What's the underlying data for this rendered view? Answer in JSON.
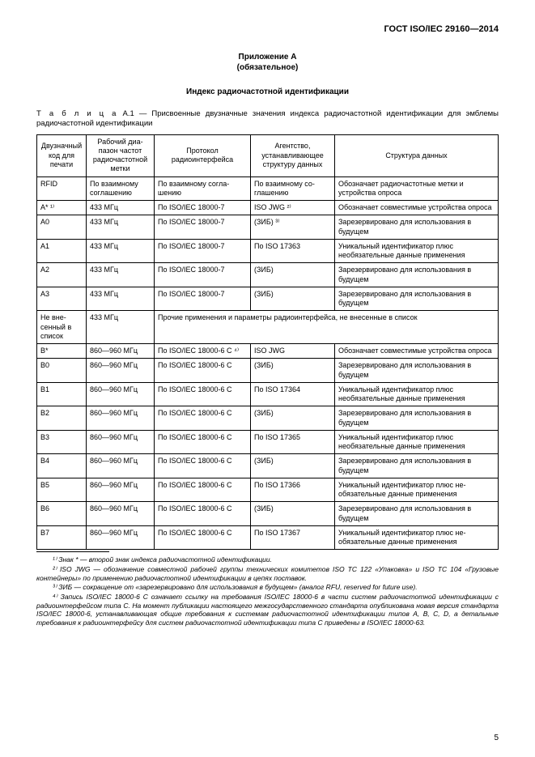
{
  "header": "ГОСТ ISO/IEC 29160—2014",
  "appendix_label": "Приложение А",
  "appendix_sub": "(обязательное)",
  "section_title": "Индекс радиочастотной идентификации",
  "table_caption_prefix": "Т а б л и ц а",
  "table_caption": "А.1 — Присвоенные двузначные значения индекса радиочастотной идентификации для эмблемы радиочастотной идентификации",
  "columns": [
    "Дву­значный код для печати",
    "Рабочий диа­пазон частот радиочастот­ной метки",
    "Протокол радиоинтерфейса",
    "Агентство, устанавливающее структуру данных",
    "Структура данных"
  ],
  "rows": [
    {
      "c1": "RFID",
      "c2": "По взаимному соглашению",
      "c3": "По взаимному согла­шению",
      "c4": "По взаимному со­глашению",
      "c5": "Обозначает радиочастотные метки и устройства опроса"
    },
    {
      "c1": "A* ¹⁾",
      "c2": "433 МГц",
      "c3": "По ISO/IEC 18000-7",
      "c4": "ISO JWG ²⁾",
      "c5": "Обозначает совместимые устрой­ства опроса"
    },
    {
      "c1": "A0",
      "c2": "433 МГц",
      "c3": "По ISO/IEC 18000-7",
      "c4": "(ЗИБ) ³⁾",
      "c5": "Зарезервировано для использова­ния в будущем"
    },
    {
      "c1": "A1",
      "c2": "433 МГц",
      "c3": "По ISO/IEC 18000-7",
      "c4": "По ISO 17363",
      "c5": "Уникальный идентификатор плюс необязательные данные применения"
    },
    {
      "c1": "A2",
      "c2": "433 МГц",
      "c3": "По ISO/IEC 18000-7",
      "c4": "(ЗИБ)",
      "c5": "Зарезервировано для использова­ния в будущем"
    },
    {
      "c1": "A3",
      "c2": "433 МГц",
      "c3": "По ISO/IEC 18000-7",
      "c4": "(ЗИБ)",
      "c5": "Зарезервировано для использова­ния в будущем"
    },
    {
      "c1": "Не вне­сенный в список",
      "c2": "433 МГц",
      "c3span": "Прочие применения и параметры радиоинтерфейса, не внесенные в список"
    },
    {
      "c1": "B*",
      "c2": "860—960 МГц",
      "c3": "По ISO/IEC 18000-6 C ⁴⁾",
      "c4": "ISO JWG",
      "c5": "Обозначает совместимые устрой­ства опроса"
    },
    {
      "c1": "B0",
      "c2": "860—960 МГц",
      "c3": "По ISO/IEC 18000-6 C",
      "c4": "(ЗИБ)",
      "c5": "Зарезервировано для использова­ния в будущем"
    },
    {
      "c1": "B1",
      "c2": "860—960 МГц",
      "c3": "По ISO/IEC 18000-6 C",
      "c4": "По ISO 17364",
      "c5": "Уникальный идентификатор плюс необязательные данные применения"
    },
    {
      "c1": "B2",
      "c2": "860—960 МГц",
      "c3": "По ISO/IEC 18000-6 C",
      "c4": "(ЗИБ)",
      "c5": "Зарезервировано для использова­ния в будущем"
    },
    {
      "c1": "B3",
      "c2": "860—960 МГц",
      "c3": "По ISO/IEC 18000-6 C",
      "c4": "По ISO 17365",
      "c5": "Уникальный идентификатор плюс необязательные данные применения"
    },
    {
      "c1": "B4",
      "c2": "860—960 МГц",
      "c3": "По ISO/IEC 18000-6 C",
      "c4": "(ЗИБ)",
      "c5": "Зарезервировано для использова­ния в будущем"
    },
    {
      "c1": "B5",
      "c2": "860—960 МГц",
      "c3": "По ISO/IEC 18000-6 C",
      "c4": "По ISO 17366",
      "c5": "Уникальный идентификатор плюс не­обязательные данные применения"
    },
    {
      "c1": "B6",
      "c2": "860—960 МГц",
      "c3": "По ISO/IEC 18000-6 C",
      "c4": "(ЗИБ)",
      "c5": "Зарезервировано для использова­ния в будущем"
    },
    {
      "c1": "B7",
      "c2": "860—960 МГц",
      "c3": "По ISO/IEC 18000-6 C",
      "c4": "По ISO 17367",
      "c5": "Уникальный идентификатор плюс не­обязательные данные применения"
    }
  ],
  "footnotes": [
    "¹⁾ Знак * — второй знак индекса радиочастотной идентификации.",
    "²⁾ ISO JWG — обозначение совместной рабочей группы технических комитетов ISO TC 122 «Упаковка» и ISO TC 104 «Грузовые контейнеры» по применению радиочастотной идентификации в цепях поставок.",
    "³⁾ ЗИБ — сокращение от «зарезервировано для использования в будущем» (аналог RFU, reserved for future use).",
    "⁴⁾ Запись ISO/IEC 18000-6 C означает ссылку на требования ISO/IEC 18000-6 в части систем радиоча­стотной идентификации с радиоинтерфейсом типа C. На момент публикации настоящего межгосударствен­ного стандарта опубликована новая версия стандарта ISO/IEC 18000-6, устанавливающая общие требования к системам радиочастотной идентификации типов A, B, C, D, а детальные требования к радиоинтерфейсу для систем радиочастотной идентификации типа C приведены в ISO/IEC 18000-63."
  ],
  "page_number": "5"
}
